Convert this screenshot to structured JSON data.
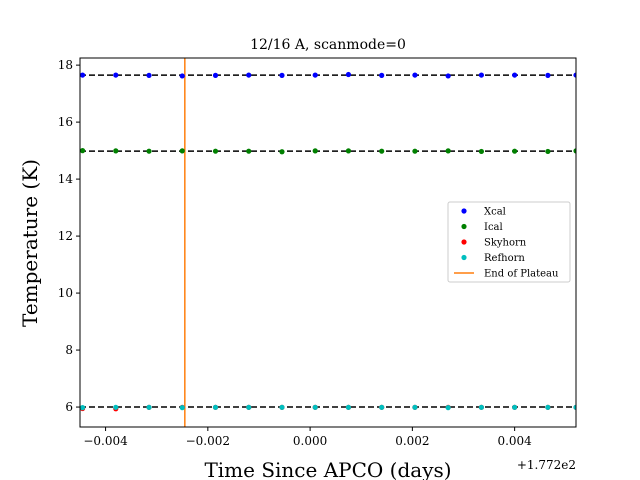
{
  "chart_data": {
    "type": "scatter",
    "title": "12/16 A, scanmode=0",
    "xlabel": "Time Since APCO (days)",
    "ylabel": "Temperature (K)",
    "x_offset_label": "+1.772e2",
    "xlim": [
      -0.0045,
      0.0052
    ],
    "ylim": [
      5.3,
      18.25
    ],
    "x_ticks": [
      -0.004,
      -0.002,
      0.0,
      0.002,
      0.004
    ],
    "x_tick_labels": [
      "−0.004",
      "−0.002",
      "0.000",
      "0.002",
      "0.004"
    ],
    "y_ticks": [
      6,
      8,
      10,
      12,
      14,
      16,
      18
    ],
    "y_tick_labels": [
      "6",
      "8",
      "10",
      "12",
      "14",
      "16",
      "18"
    ],
    "x": [
      -0.00445,
      -0.0038,
      -0.00315,
      -0.0025,
      -0.00185,
      -0.0012,
      -0.00055,
      0.0001,
      0.00075,
      0.0014,
      0.00205,
      0.0027,
      0.00335,
      0.004,
      0.00465,
      0.0052
    ],
    "series": [
      {
        "name": "Xcal",
        "color": "#0000ff",
        "values": [
          17.65,
          17.65,
          17.64,
          17.62,
          17.64,
          17.65,
          17.64,
          17.65,
          17.67,
          17.64,
          17.65,
          17.62,
          17.65,
          17.65,
          17.64,
          17.65
        ]
      },
      {
        "name": "Ical",
        "color": "#008000",
        "values": [
          15.0,
          14.99,
          14.98,
          14.99,
          14.98,
          14.98,
          14.96,
          14.99,
          14.99,
          14.98,
          14.98,
          14.99,
          14.97,
          14.98,
          14.97,
          14.99
        ]
      },
      {
        "name": "Skyhorn",
        "color": "#ff0000",
        "values": [
          5.95,
          5.94,
          5.99,
          5.99,
          5.99,
          5.99,
          5.99,
          5.99,
          5.99,
          5.99,
          5.99,
          5.99,
          5.99,
          5.99,
          5.99,
          5.99
        ]
      },
      {
        "name": "Refhorn",
        "color": "#00bfbf",
        "values": [
          5.98,
          5.99,
          5.99,
          5.98,
          5.99,
          5.99,
          5.99,
          5.99,
          5.99,
          5.99,
          5.99,
          5.98,
          5.99,
          5.99,
          5.99,
          5.99
        ]
      }
    ],
    "reference_lines": [
      17.65,
      14.98,
      6.0
    ],
    "vertical_line": {
      "name": "End of Plateau",
      "x": -0.00245,
      "color": "#ff7f0e"
    },
    "legend": {
      "placement": "center-right",
      "entries": [
        "Xcal",
        "Ical",
        "Skyhorn",
        "Refhorn",
        "End of Plateau"
      ]
    },
    "grid": false
  }
}
